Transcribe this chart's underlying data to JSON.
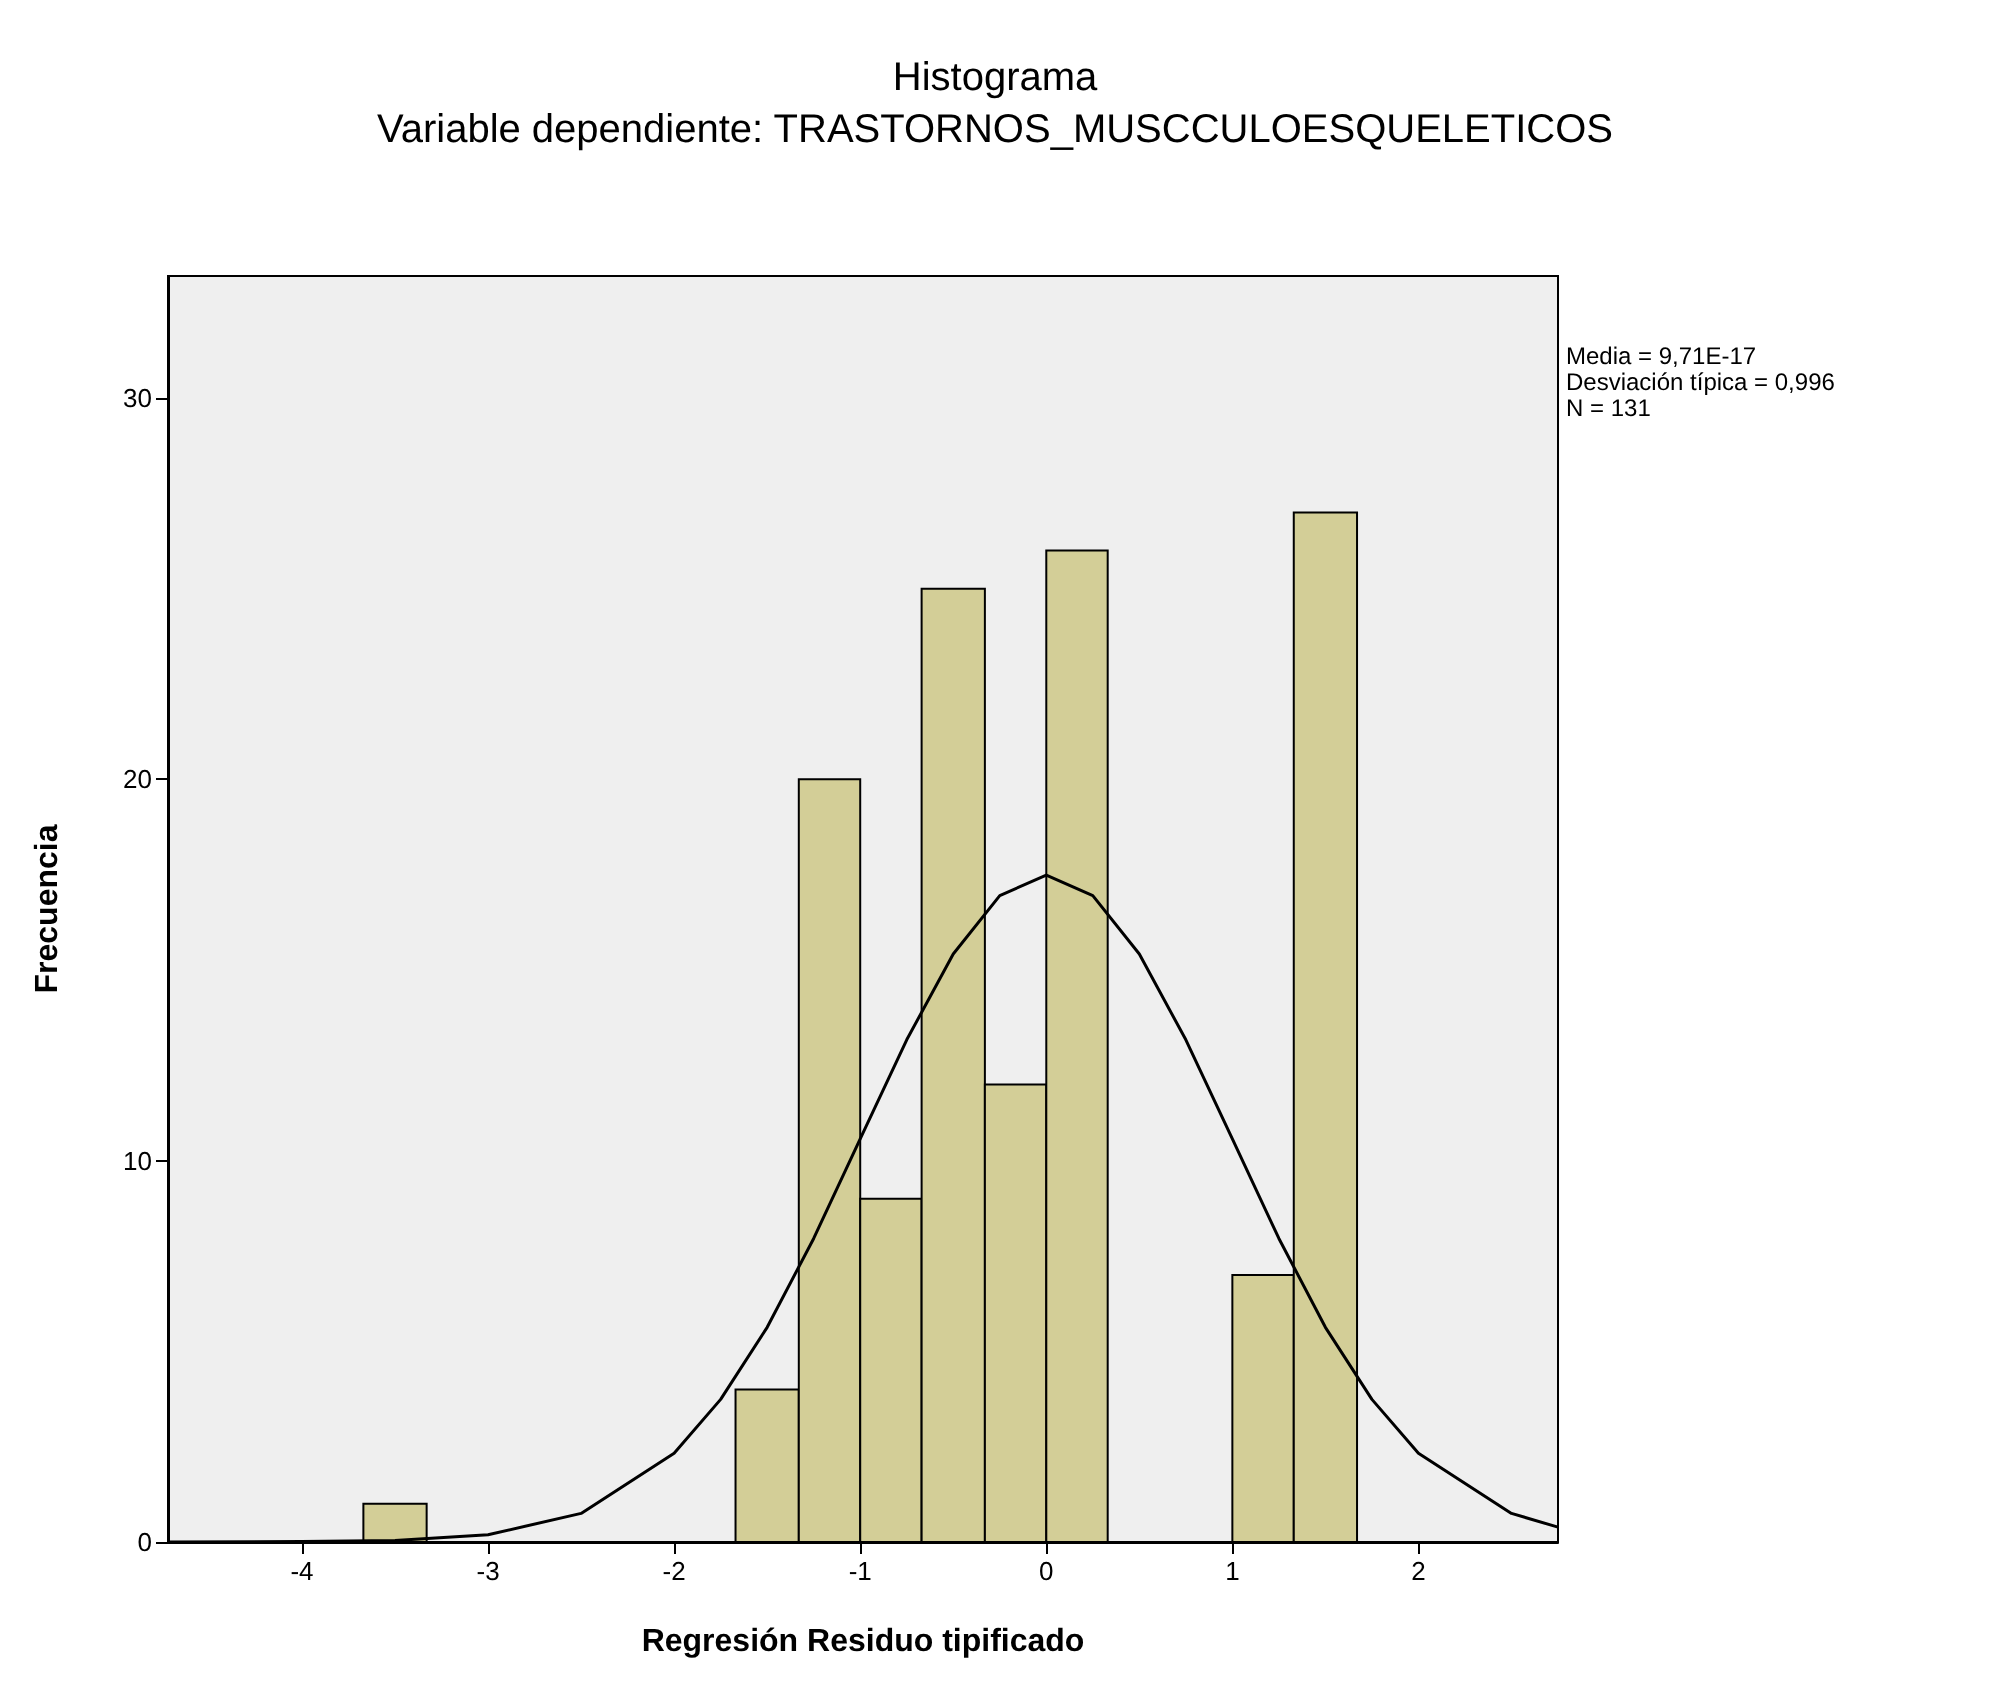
{
  "chart_data": {
    "type": "histogram",
    "title": "Histograma",
    "subtitle": "Variable dependiente: TRASTORNOS_MUSCCULOESQUELETICOS",
    "xlabel": "Regresión Residuo tipificado",
    "ylabel": "Frecuencia",
    "annotations": [
      "Media = 9,71E-17",
      "Desviación típica = 0,996",
      "N = 131"
    ],
    "series": [
      {
        "color": "#d3ce97",
        "bins": [
          -3.67,
          -3.33
        ],
        "values": [
          1
        ]
      },
      {
        "color": "#d3ce97",
        "bins": [
          -1.67,
          -1.33,
          -1,
          -0.67,
          -0.33,
          0,
          0.33
        ],
        "values": [
          4,
          20,
          9,
          25,
          12,
          26
        ]
      },
      {
        "color": "#d3ce97",
        "bins": [
          1,
          1.33,
          1.67
        ],
        "values": [
          7,
          27
        ]
      },
      {
        "type": "line",
        "color": "#000000",
        "marker": "none",
        "x": [
          -4.72,
          -4,
          -3.5,
          -3,
          -2.5,
          -2,
          -1.75,
          -1.5,
          -1.25,
          -1,
          -0.75,
          -0.5,
          -0.25,
          0,
          0.25,
          0.5,
          0.75,
          1,
          1.25,
          1.5,
          1.75,
          2,
          2.5,
          2.75
        ],
        "values": [
          0,
          0.01,
          0.04,
          0.19,
          0.75,
          2.33,
          3.74,
          5.63,
          7.96,
          10.57,
          13.17,
          15.42,
          16.95,
          17.49,
          16.95,
          15.42,
          13.17,
          10.57,
          7.96,
          5.63,
          3.74,
          2.33,
          0.75,
          0.39
        ]
      }
    ],
    "xlim": [
      -4.72,
      2.75
    ],
    "ylim": [
      0,
      33.2
    ],
    "xticks": [
      -4,
      -3,
      -2,
      -1,
      0,
      1,
      2
    ],
    "yticks": [
      0,
      10,
      20,
      30
    ]
  }
}
